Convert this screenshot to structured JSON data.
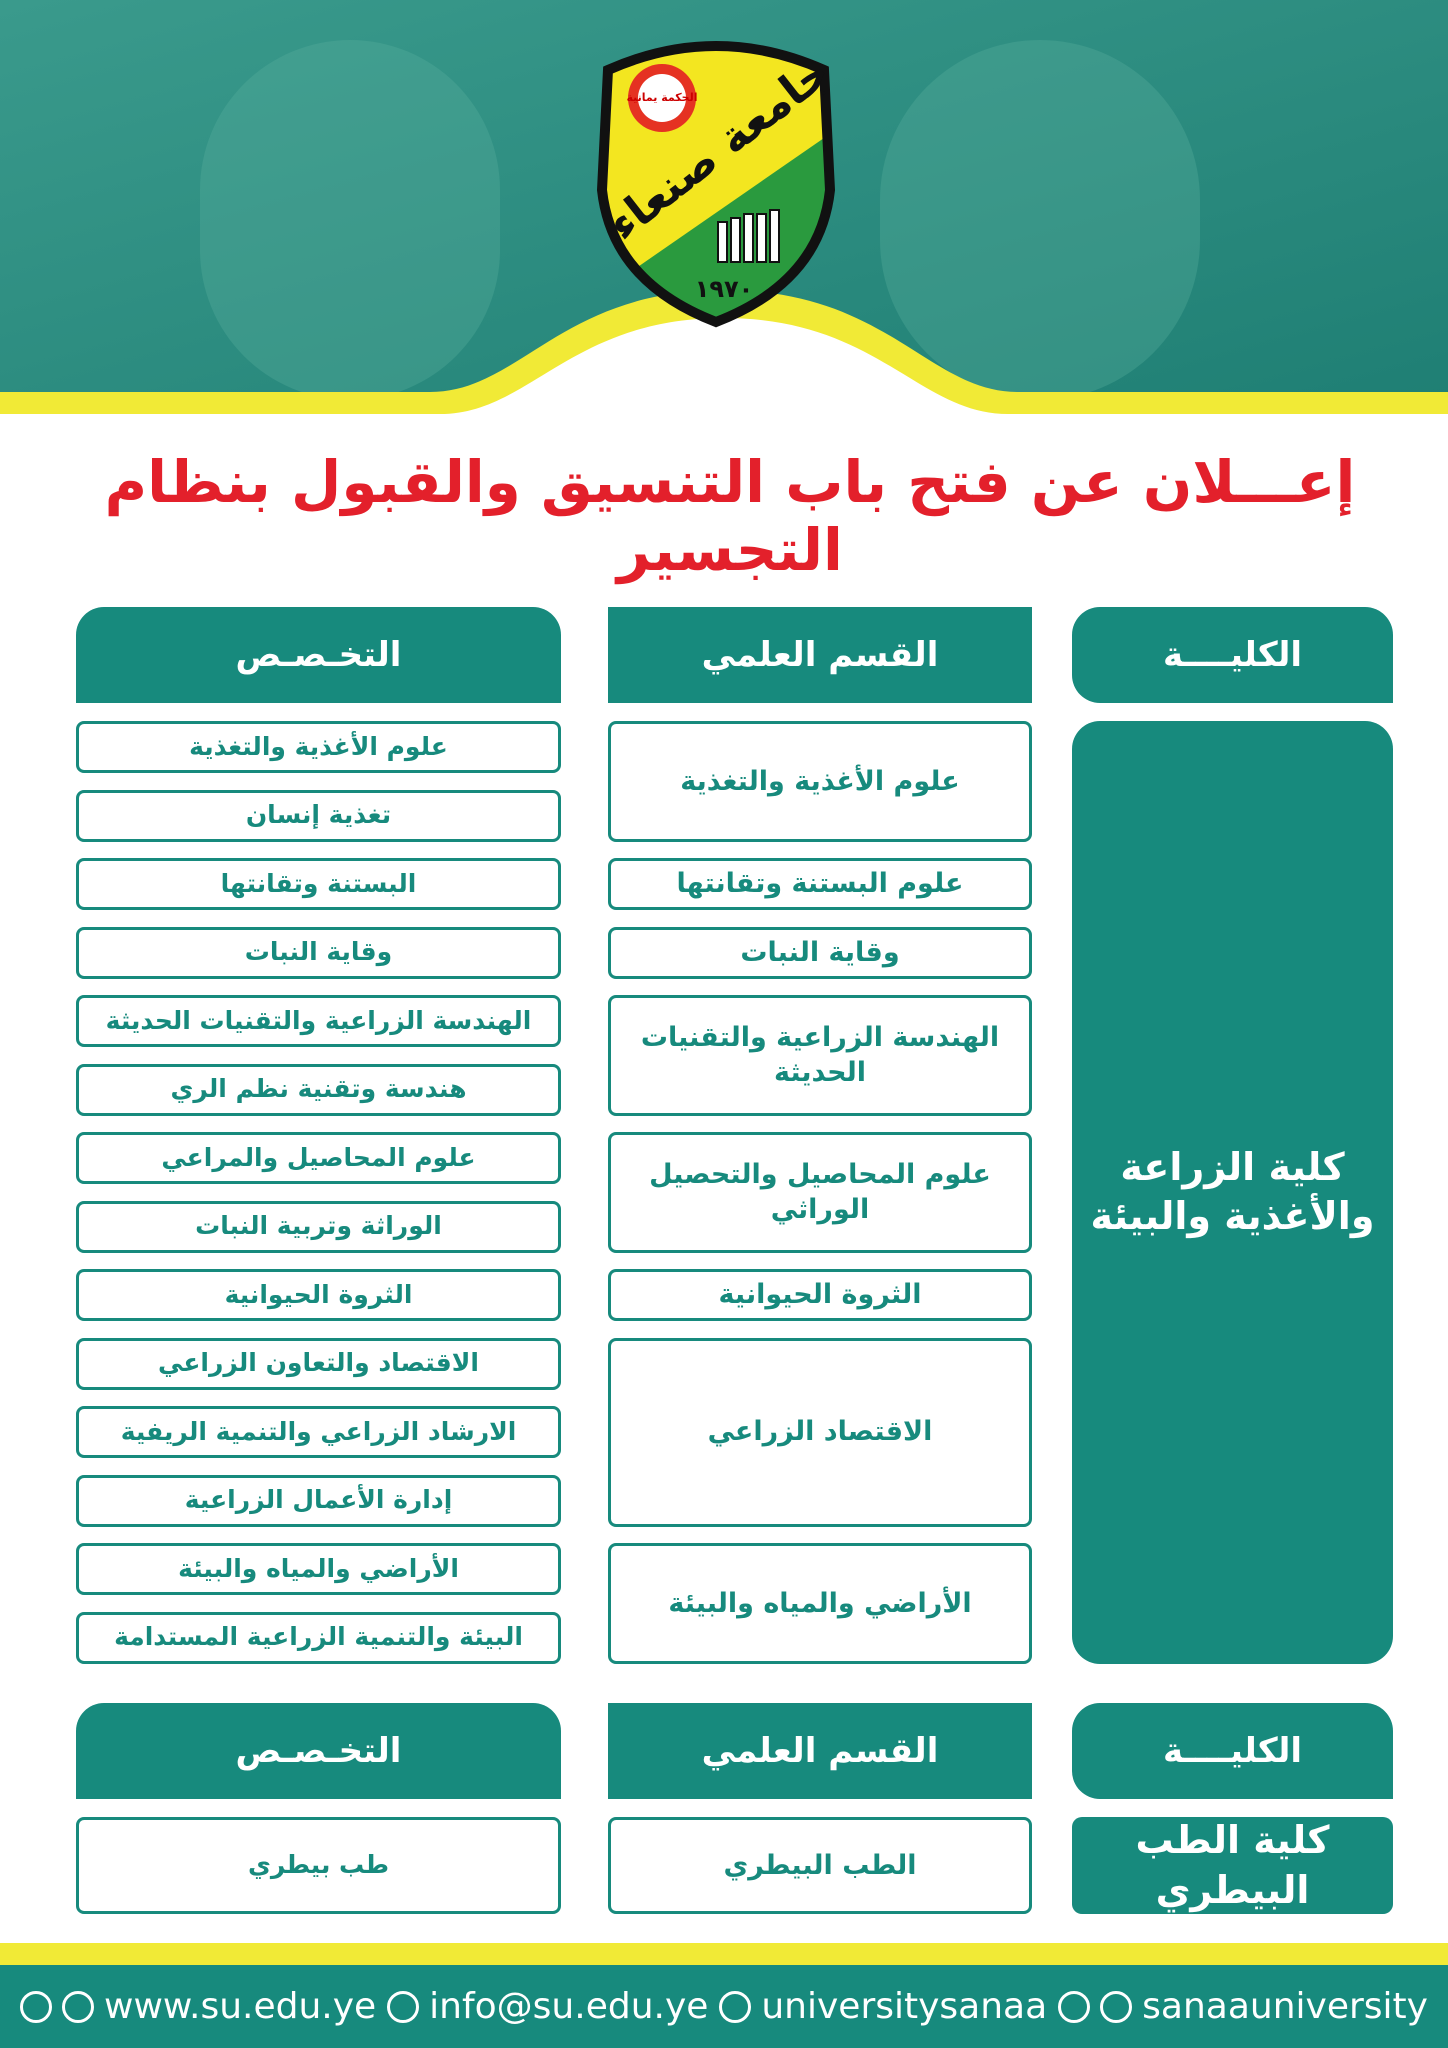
{
  "header": {
    "logo": {
      "motto": "الحكمة يمانية",
      "name": "جامعة صنعاء",
      "year": "١٩٧٠"
    },
    "title": "إعـــلان عن فتح باب التنسيق والقبول بنظام التجسير"
  },
  "sections": [
    {
      "columns": [
        "الكليــــة",
        "القسم العلمي",
        "التخـصـص"
      ],
      "college": "كلية الزراعة والأغذية والبيئة",
      "departments": [
        {
          "name": "علوم الأغذية والتغذية",
          "specializations": [
            "علوم الأغذية والتغذية",
            "تغذية إنسان"
          ]
        },
        {
          "name": "علوم البستنة وتقانتها",
          "specializations": [
            "البستنة وتقانتها"
          ]
        },
        {
          "name": "وقاية النبات",
          "specializations": [
            "وقاية النبات"
          ]
        },
        {
          "name": "الهندسة الزراعية والتقنيات الحديثة",
          "specializations": [
            "الهندسة الزراعية والتقنيات الحديثة",
            "هندسة وتقنية نظم الري"
          ]
        },
        {
          "name": "علوم المحاصيل والتحصيل الوراثي",
          "specializations": [
            "علوم المحاصيل والمراعي",
            "الوراثة وتربية النبات"
          ]
        },
        {
          "name": "الثروة الحيوانية",
          "specializations": [
            "الثروة الحيوانية"
          ]
        },
        {
          "name": "الاقتصاد الزراعي",
          "specializations": [
            "الاقتصاد والتعاون الزراعي",
            "الارشاد الزراعي والتنمية الريفية",
            "إدارة الأعمال الزراعية"
          ]
        },
        {
          "name": "الأراضي والمياه والبيئة",
          "specializations": [
            "الأراضي والمياه والبيئة",
            "البيئة والتنمية الزراعية المستدامة"
          ]
        }
      ]
    },
    {
      "columns": [
        "الكليــــة",
        "القسم العلمي",
        "التخـصـص"
      ],
      "college": "كلية الطب البيطري",
      "departments": [
        {
          "name": "الطب البيطري",
          "specializations": [
            "طب بيطري"
          ]
        }
      ]
    }
  ],
  "footer": {
    "website": "www.su.edu.ye",
    "email": "info@su.edu.ye",
    "twitter": "universitysanaa",
    "social": "sanaauniversity"
  }
}
